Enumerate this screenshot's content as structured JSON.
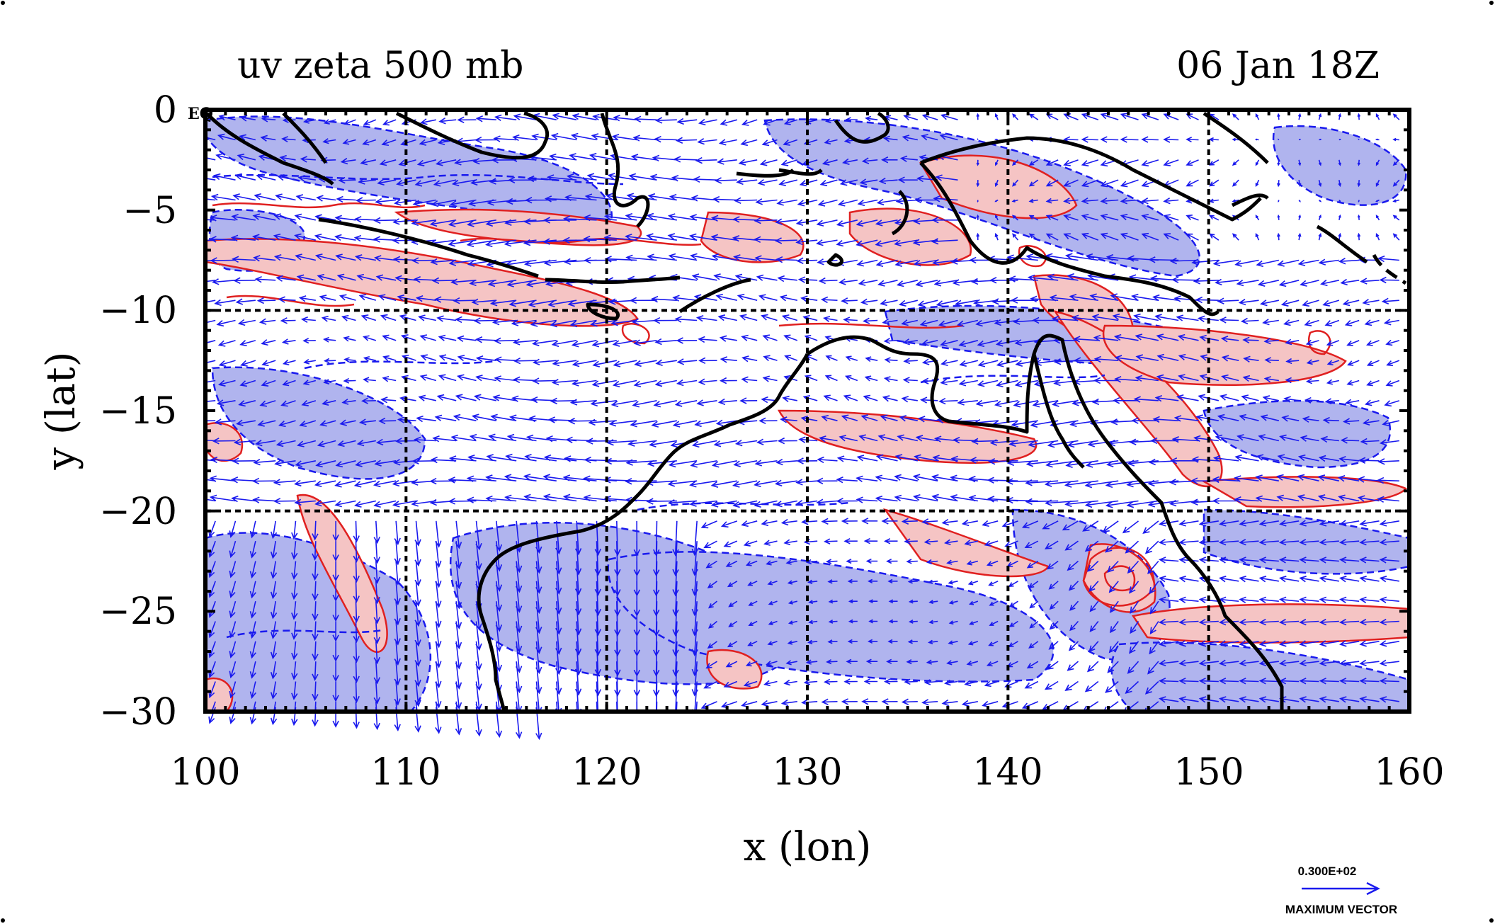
{
  "chart_data": {
    "type": "map-vector-contour",
    "title": "uv zeta 500 mb",
    "time_label": "06 Jan 18Z",
    "xlabel": "x (lon)",
    "ylabel": "y (lat)",
    "xlim": [
      100,
      160
    ],
    "ylim": [
      -30,
      0
    ],
    "x_ticks": [
      "100",
      "110",
      "120",
      "130",
      "140",
      "150",
      "160"
    ],
    "y_ticks": [
      "0",
      "−5",
      "−10",
      "−15",
      "−20",
      "−25",
      "−30"
    ],
    "x_tick_values": [
      100,
      110,
      120,
      130,
      140,
      150,
      160
    ],
    "y_tick_values": [
      0,
      -5,
      -10,
      -15,
      -20,
      -25,
      -30
    ],
    "grid_lines_x": [
      110,
      120,
      130,
      140,
      150
    ],
    "grid_lines_y": [
      -10,
      -20
    ],
    "corner_label": "EQ",
    "legend": {
      "value_text": "0.300E+02",
      "caption": "MAXIMUM VECTOR"
    },
    "colors": {
      "positive_fill": "#f5c4c4",
      "positive_contour": "#e02020",
      "negative_fill": "#b0b4ee",
      "negative_contour": "#1a1aee",
      "vector": "#1a1aee",
      "coast": "#000000"
    }
  }
}
